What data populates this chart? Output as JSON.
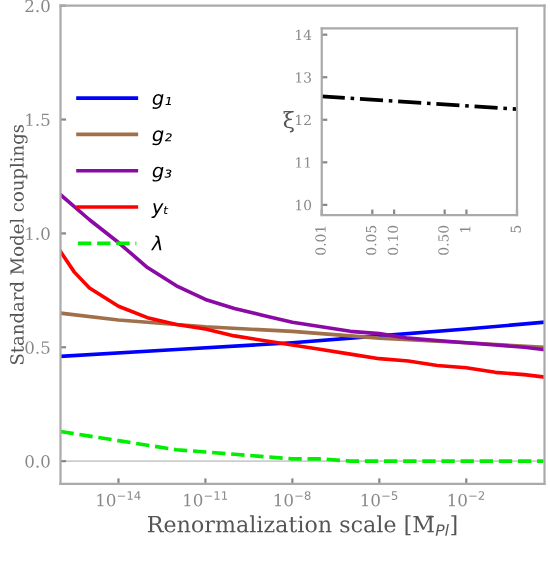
{
  "chart_data": [
    {
      "type": "line",
      "ylabel": "Standard Model couplings",
      "xlabel": "Renormalization scale [M̄$_{Pl}$]",
      "log": "x",
      "xlim": [
        1e-16,
        5
      ],
      "xticks": [
        {
          "value": 1e-14,
          "label": "10$^{−14}$"
        },
        {
          "value": 1e-11,
          "label": "10$^{−11}$"
        },
        {
          "value": 1e-08,
          "label": "10$^{−8}$"
        },
        {
          "value": 1e-05,
          "label": "10$^{−5}$"
        },
        {
          "value": 0.01,
          "label": "10$^{−2}$"
        }
      ],
      "ylim": [
        -0.1,
        2.0
      ],
      "yticks": [
        {
          "value": 0,
          "label": "0.0"
        },
        0.5,
        {
          "value": 1,
          "label": "1.0"
        },
        1.5,
        {
          "value": 2,
          "label": "2.0"
        }
      ],
      "grid": false,
      "legend": "top left",
      "ref_lines": [
        {
          "axis": "y",
          "value": 0,
          "color": "#cccccc"
        }
      ],
      "series": [
        {
          "name": "g₁",
          "color": "#0000ff",
          "x": [
            1e-16,
            1e-12,
            1e-08,
            1e-05,
            0.01,
            4.6
          ],
          "values": [
            0.46,
            0.49,
            0.52,
            0.55,
            0.58,
            0.61
          ]
        },
        {
          "name": "g₂",
          "color": "#a0704a",
          "x": [
            1e-16,
            1e-14,
            1e-11,
            1e-08,
            1e-05,
            0.01,
            4.6
          ],
          "values": [
            0.65,
            0.62,
            0.59,
            0.57,
            0.54,
            0.52,
            0.5
          ]
        },
        {
          "name": "g₃",
          "color": "#8b0aa5",
          "x": [
            1e-16,
            1e-15,
            1e-14,
            1e-13,
            1e-12,
            1e-11,
            1e-10,
            1e-09,
            1e-08,
            1e-07,
            1e-06,
            1e-05,
            0.0001,
            0.001,
            0.01,
            0.1,
            1,
            4.6
          ],
          "values": [
            1.17,
            1.06,
            0.96,
            0.85,
            0.77,
            0.71,
            0.67,
            0.64,
            0.61,
            0.59,
            0.57,
            0.56,
            0.54,
            0.53,
            0.52,
            0.51,
            0.5,
            0.49
          ]
        },
        {
          "name": "yₜ",
          "color": "#ff0000",
          "x": [
            1e-16,
            3e-16,
            1e-15,
            1e-14,
            1e-13,
            1e-12,
            1e-11,
            1e-10,
            1e-09,
            1e-08,
            1e-07,
            1e-06,
            1e-05,
            0.0001,
            0.001,
            0.01,
            0.1,
            1,
            4.6
          ],
          "values": [
            0.92,
            0.83,
            0.76,
            0.68,
            0.63,
            0.6,
            0.58,
            0.55,
            0.53,
            0.51,
            0.49,
            0.47,
            0.45,
            0.44,
            0.42,
            0.41,
            0.39,
            0.38,
            0.37
          ]
        },
        {
          "name": "λ",
          "color": "#00ee00",
          "line_style": "dashed",
          "x": [
            1e-16,
            1e-15,
            1e-14,
            1e-13,
            1e-12,
            1e-11,
            1e-10,
            1e-09,
            1e-08,
            1e-07,
            1e-06,
            1e-05,
            0.001,
            4.6
          ],
          "values": [
            0.13,
            0.11,
            0.09,
            0.07,
            0.05,
            0.04,
            0.03,
            0.02,
            0.01,
            0.01,
            0.0,
            0.0,
            0.0,
            0.0
          ]
        }
      ]
    },
    {
      "type": "line",
      "ylabel": "ξ",
      "log": "x",
      "xlim": [
        0.01,
        5
      ],
      "xticks": [
        0.01,
        0.05,
        {
          "value": 0.1,
          "label": "0.10"
        },
        {
          "value": 0.5,
          "label": "0.50"
        },
        1,
        5
      ],
      "ylim": [
        9.76,
        14.15
      ],
      "yticks": [
        10,
        11,
        12,
        13,
        14
      ],
      "grid": false,
      "series": [
        {
          "color": "#000000",
          "line_style": "dashdot",
          "x": [
            0.01,
            5
          ],
          "values": [
            12.55,
            12.25
          ]
        }
      ]
    }
  ]
}
